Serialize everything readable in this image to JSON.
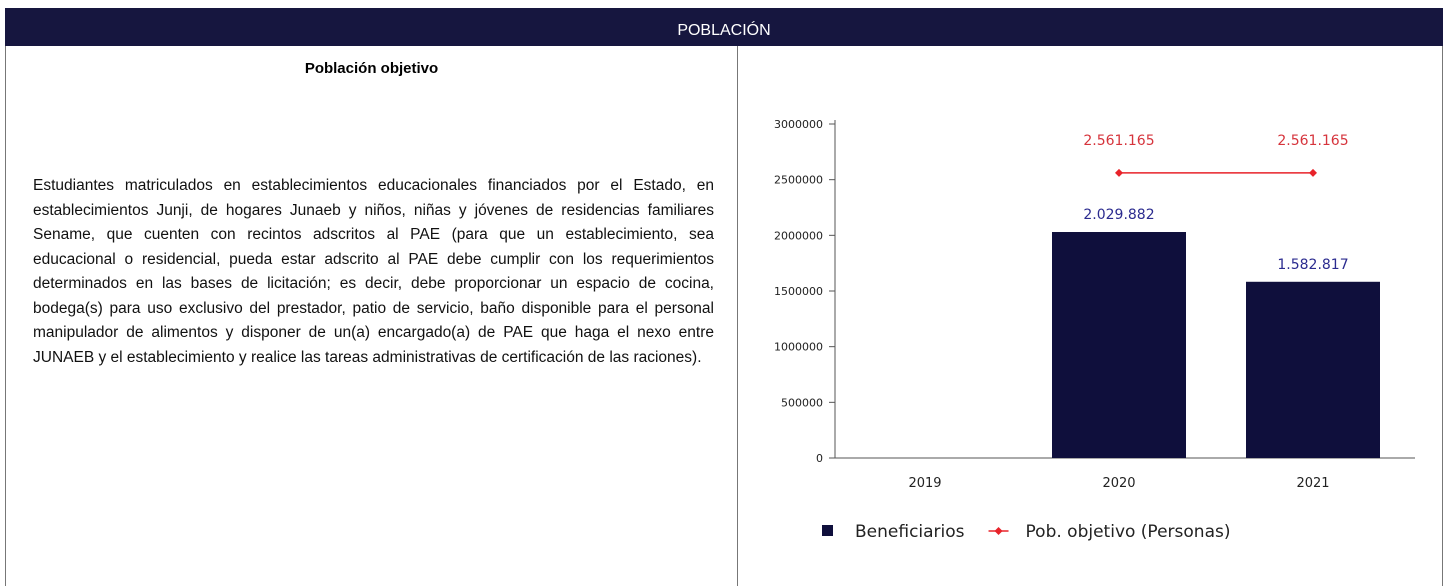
{
  "header": {
    "title": "POBLACIÓN"
  },
  "section": {
    "title": "Población objetivo",
    "text": "Estudiantes matriculados en establecimientos educacionales financiados por el Estado, en establecimientos Junji, de hogares Junaeb y niños, niñas y jóvenes de residencias familiares Sename, que cuenten con recintos adscritos al PAE (para que un establecimiento, sea educacional o residencial, pueda estar adscrito al PAE debe cumplir con los requerimientos determinados en las bases de licitación; es decir, debe proporcionar un espacio de cocina, bodega(s) para uso exclusivo del prestador, patio de servicio, baño disponible para el personal manipulador de alimentos y disponer de un(a) encargado(a) de PAE que haga el nexo entre JUNAEB y el establecimiento y realice las tareas administrativas de certificación de las raciones)."
  },
  "chart_data": {
    "type": "bar_line",
    "categories": [
      "2019",
      "2020",
      "2021"
    ],
    "series": [
      {
        "name": "Beneficiarios",
        "type": "bar",
        "color": "#0f0f3c",
        "label_color": "#2b2b8f",
        "values": [
          null,
          2029882,
          1582817
        ],
        "value_labels": [
          null,
          "2.029.882",
          "1.582.817"
        ]
      },
      {
        "name": "Pob. objetivo (Personas)",
        "type": "line",
        "color": "#e8232a",
        "label_color": "#d6343c",
        "values": [
          null,
          2561165,
          2561165
        ],
        "value_labels": [
          null,
          "2.561.165",
          "2.561.165"
        ]
      }
    ],
    "ylim": [
      0,
      3000000
    ],
    "yticks": [
      0,
      500000,
      1000000,
      1500000,
      2000000,
      2500000,
      3000000
    ],
    "legend": "bottom"
  }
}
